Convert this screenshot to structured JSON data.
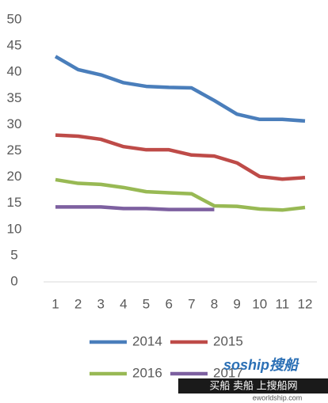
{
  "chart_data": {
    "type": "line",
    "x": [
      1,
      2,
      3,
      4,
      5,
      6,
      7,
      8,
      9,
      10,
      11,
      12
    ],
    "xlim": [
      1,
      12
    ],
    "xticks": [
      1,
      2,
      3,
      4,
      5,
      6,
      7,
      8,
      9,
      10,
      11,
      12
    ],
    "ylim": [
      0,
      50
    ],
    "yticks": [
      0,
      5,
      10,
      15,
      20,
      25,
      30,
      35,
      40,
      45,
      50
    ],
    "grid": false,
    "legend": "bottom",
    "series": [
      {
        "name": "2014",
        "color": "#4a7ebb",
        "values": [
          43,
          40.5,
          39.5,
          38,
          37.3,
          37.1,
          37,
          34.6,
          32,
          31,
          31,
          30.7
        ]
      },
      {
        "name": "2015",
        "color": "#be4b48",
        "values": [
          28,
          27.8,
          27.2,
          25.8,
          25.2,
          25.2,
          24.2,
          24,
          22.7,
          20.1,
          19.6,
          19.9
        ]
      },
      {
        "name": "2016",
        "color": "#98b954",
        "values": [
          19.5,
          18.8,
          18.6,
          18,
          17.2,
          17,
          16.8,
          14.5,
          14.4,
          13.9,
          13.7,
          14.2
        ]
      },
      {
        "name": "2017",
        "color": "#7d60a0",
        "values": [
          14.3,
          14.3,
          14.3,
          14,
          14,
          13.8,
          13.8,
          13.8,
          null,
          null,
          null,
          null
        ]
      }
    ],
    "annotations": [
      "soship搜船",
      "买船 卖船 上搜船网",
      "eworldship.com"
    ]
  }
}
